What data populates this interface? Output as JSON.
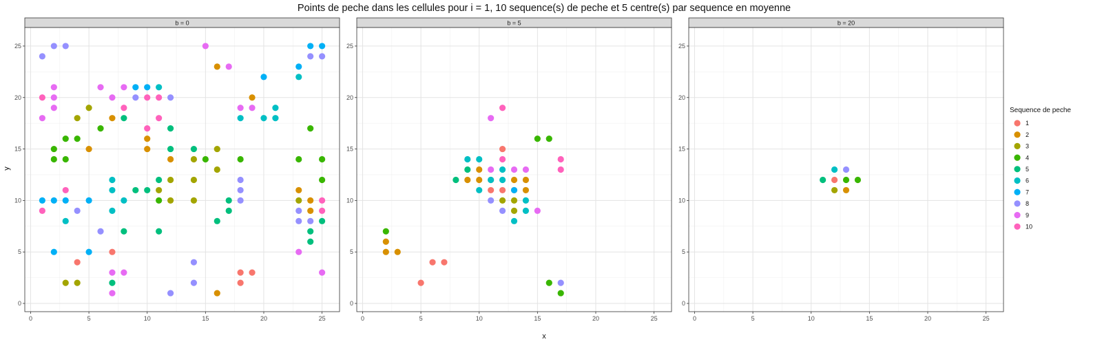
{
  "chart_data": {
    "type": "scatter",
    "title": "Points de peche dans les cellules pour i = 1, 10 sequence(s) de peche et 5 centre(s) par sequence en moyenne",
    "xlabel": "x",
    "ylabel": "y",
    "xlim": [
      -0.5,
      26.5
    ],
    "ylim": [
      -0.8,
      26.8
    ],
    "x_ticks": [
      0,
      5,
      10,
      15,
      20,
      25
    ],
    "y_ticks": [
      0,
      5,
      10,
      15,
      20,
      25
    ],
    "grid": true,
    "legend": {
      "title": "Sequence de peche",
      "placement": "right",
      "entries": [
        "1",
        "2",
        "3",
        "4",
        "5",
        "6",
        "7",
        "8",
        "9",
        "10"
      ],
      "colors": [
        "#F8766D",
        "#D89000",
        "#A3A500",
        "#39B600",
        "#00BF7D",
        "#00BFC4",
        "#00B0F6",
        "#9590FF",
        "#E76BF3",
        "#FF62BC"
      ]
    },
    "panels": [
      {
        "label": "b = 0",
        "points": [
          {
            "s": 1,
            "x": 7,
            "y": 5
          },
          {
            "s": 1,
            "x": 4,
            "y": 4
          },
          {
            "s": 1,
            "x": 18,
            "y": 3
          },
          {
            "s": 1,
            "x": 19,
            "y": 3
          },
          {
            "s": 1,
            "x": 18,
            "y": 2
          },
          {
            "s": 2,
            "x": 16,
            "y": 23
          },
          {
            "s": 2,
            "x": 19,
            "y": 20
          },
          {
            "s": 2,
            "x": 7,
            "y": 18
          },
          {
            "s": 2,
            "x": 10,
            "y": 16
          },
          {
            "s": 2,
            "x": 5,
            "y": 15
          },
          {
            "s": 2,
            "x": 10,
            "y": 15
          },
          {
            "s": 2,
            "x": 12,
            "y": 14
          },
          {
            "s": 2,
            "x": 23,
            "y": 11
          },
          {
            "s": 2,
            "x": 24,
            "y": 10
          },
          {
            "s": 2,
            "x": 24,
            "y": 9
          },
          {
            "s": 2,
            "x": 16,
            "y": 1
          },
          {
            "s": 3,
            "x": 5,
            "y": 19
          },
          {
            "s": 3,
            "x": 4,
            "y": 18
          },
          {
            "s": 3,
            "x": 16,
            "y": 15
          },
          {
            "s": 3,
            "x": 14,
            "y": 14
          },
          {
            "s": 3,
            "x": 16,
            "y": 13
          },
          {
            "s": 3,
            "x": 12,
            "y": 12
          },
          {
            "s": 3,
            "x": 14,
            "y": 12
          },
          {
            "s": 3,
            "x": 11,
            "y": 11
          },
          {
            "s": 3,
            "x": 12,
            "y": 10
          },
          {
            "s": 3,
            "x": 14,
            "y": 10
          },
          {
            "s": 3,
            "x": 23,
            "y": 10
          },
          {
            "s": 3,
            "x": 3,
            "y": 2
          },
          {
            "s": 3,
            "x": 4,
            "y": 2
          },
          {
            "s": 4,
            "x": 6,
            "y": 17
          },
          {
            "s": 4,
            "x": 24,
            "y": 17
          },
          {
            "s": 4,
            "x": 3,
            "y": 16
          },
          {
            "s": 4,
            "x": 4,
            "y": 16
          },
          {
            "s": 4,
            "x": 2,
            "y": 15
          },
          {
            "s": 4,
            "x": 2,
            "y": 14
          },
          {
            "s": 4,
            "x": 3,
            "y": 14
          },
          {
            "s": 4,
            "x": 15,
            "y": 14
          },
          {
            "s": 4,
            "x": 18,
            "y": 14
          },
          {
            "s": 4,
            "x": 23,
            "y": 14
          },
          {
            "s": 4,
            "x": 25,
            "y": 14
          },
          {
            "s": 4,
            "x": 25,
            "y": 12
          },
          {
            "s": 4,
            "x": 11,
            "y": 10
          },
          {
            "s": 5,
            "x": 12,
            "y": 17
          },
          {
            "s": 5,
            "x": 8,
            "y": 18
          },
          {
            "s": 5,
            "x": 12,
            "y": 15
          },
          {
            "s": 5,
            "x": 14,
            "y": 15
          },
          {
            "s": 5,
            "x": 11,
            "y": 12
          },
          {
            "s": 5,
            "x": 9,
            "y": 11
          },
          {
            "s": 5,
            "x": 10,
            "y": 11
          },
          {
            "s": 5,
            "x": 17,
            "y": 10
          },
          {
            "s": 5,
            "x": 17,
            "y": 9
          },
          {
            "s": 5,
            "x": 16,
            "y": 8
          },
          {
            "s": 5,
            "x": 25,
            "y": 8
          },
          {
            "s": 5,
            "x": 8,
            "y": 7
          },
          {
            "s": 5,
            "x": 11,
            "y": 7
          },
          {
            "s": 5,
            "x": 24,
            "y": 7
          },
          {
            "s": 5,
            "x": 24,
            "y": 6
          },
          {
            "s": 5,
            "x": 7,
            "y": 2
          },
          {
            "s": 6,
            "x": 11,
            "y": 21
          },
          {
            "s": 6,
            "x": 21,
            "y": 19
          },
          {
            "s": 6,
            "x": 20,
            "y": 18
          },
          {
            "s": 6,
            "x": 21,
            "y": 18
          },
          {
            "s": 6,
            "x": 18,
            "y": 18
          },
          {
            "s": 6,
            "x": 23,
            "y": 22
          },
          {
            "s": 6,
            "x": 7,
            "y": 12
          },
          {
            "s": 6,
            "x": 7,
            "y": 11
          },
          {
            "s": 6,
            "x": 8,
            "y": 10
          },
          {
            "s": 6,
            "x": 7,
            "y": 9
          },
          {
            "s": 6,
            "x": 3,
            "y": 8
          },
          {
            "s": 7,
            "x": 24,
            "y": 25
          },
          {
            "s": 7,
            "x": 25,
            "y": 25
          },
          {
            "s": 7,
            "x": 23,
            "y": 23
          },
          {
            "s": 7,
            "x": 20,
            "y": 22
          },
          {
            "s": 7,
            "x": 9,
            "y": 21
          },
          {
            "s": 7,
            "x": 10,
            "y": 21
          },
          {
            "s": 7,
            "x": 1,
            "y": 10
          },
          {
            "s": 7,
            "x": 2,
            "y": 10
          },
          {
            "s": 7,
            "x": 3,
            "y": 10
          },
          {
            "s": 7,
            "x": 5,
            "y": 10
          },
          {
            "s": 7,
            "x": 2,
            "y": 5
          },
          {
            "s": 7,
            "x": 5,
            "y": 5
          },
          {
            "s": 8,
            "x": 2,
            "y": 25
          },
          {
            "s": 8,
            "x": 3,
            "y": 25
          },
          {
            "s": 8,
            "x": 1,
            "y": 24
          },
          {
            "s": 8,
            "x": 24,
            "y": 24
          },
          {
            "s": 8,
            "x": 25,
            "y": 24
          },
          {
            "s": 8,
            "x": 9,
            "y": 20
          },
          {
            "s": 8,
            "x": 12,
            "y": 20
          },
          {
            "s": 8,
            "x": 18,
            "y": 12
          },
          {
            "s": 8,
            "x": 18,
            "y": 11
          },
          {
            "s": 8,
            "x": 18,
            "y": 10
          },
          {
            "s": 8,
            "x": 4,
            "y": 9
          },
          {
            "s": 8,
            "x": 23,
            "y": 9
          },
          {
            "s": 8,
            "x": 23,
            "y": 8
          },
          {
            "s": 8,
            "x": 24,
            "y": 8
          },
          {
            "s": 8,
            "x": 6,
            "y": 7
          },
          {
            "s": 8,
            "x": 14,
            "y": 4
          },
          {
            "s": 8,
            "x": 14,
            "y": 2
          },
          {
            "s": 8,
            "x": 12,
            "y": 1
          },
          {
            "s": 9,
            "x": 15,
            "y": 25
          },
          {
            "s": 9,
            "x": 17,
            "y": 23
          },
          {
            "s": 9,
            "x": 2,
            "y": 21
          },
          {
            "s": 9,
            "x": 6,
            "y": 21
          },
          {
            "s": 9,
            "x": 8,
            "y": 21
          },
          {
            "s": 9,
            "x": 2,
            "y": 20
          },
          {
            "s": 9,
            "x": 7,
            "y": 20
          },
          {
            "s": 9,
            "x": 2,
            "y": 19
          },
          {
            "s": 9,
            "x": 18,
            "y": 19
          },
          {
            "s": 9,
            "x": 19,
            "y": 19
          },
          {
            "s": 9,
            "x": 1,
            "y": 18
          },
          {
            "s": 9,
            "x": 23,
            "y": 5
          },
          {
            "s": 9,
            "x": 7,
            "y": 3
          },
          {
            "s": 9,
            "x": 8,
            "y": 3
          },
          {
            "s": 9,
            "x": 25,
            "y": 3
          },
          {
            "s": 9,
            "x": 7,
            "y": 1
          },
          {
            "s": 10,
            "x": 1,
            "y": 20
          },
          {
            "s": 10,
            "x": 10,
            "y": 20
          },
          {
            "s": 10,
            "x": 11,
            "y": 20
          },
          {
            "s": 10,
            "x": 8,
            "y": 19
          },
          {
            "s": 10,
            "x": 10,
            "y": 17
          },
          {
            "s": 10,
            "x": 11,
            "y": 18
          },
          {
            "s": 10,
            "x": 3,
            "y": 11
          },
          {
            "s": 10,
            "x": 25,
            "y": 10
          },
          {
            "s": 10,
            "x": 1,
            "y": 9
          },
          {
            "s": 10,
            "x": 25,
            "y": 9
          }
        ]
      },
      {
        "label": "b = 5",
        "points": [
          {
            "s": 1,
            "x": 12,
            "y": 15
          },
          {
            "s": 1,
            "x": 11,
            "y": 12
          },
          {
            "s": 1,
            "x": 11,
            "y": 11
          },
          {
            "s": 1,
            "x": 12,
            "y": 11
          },
          {
            "s": 1,
            "x": 13,
            "y": 11
          },
          {
            "s": 1,
            "x": 6,
            "y": 4
          },
          {
            "s": 1,
            "x": 7,
            "y": 4
          },
          {
            "s": 1,
            "x": 5,
            "y": 2
          },
          {
            "s": 2,
            "x": 9,
            "y": 12
          },
          {
            "s": 2,
            "x": 10,
            "y": 13
          },
          {
            "s": 2,
            "x": 10,
            "y": 12
          },
          {
            "s": 2,
            "x": 13,
            "y": 12
          },
          {
            "s": 2,
            "x": 14,
            "y": 12
          },
          {
            "s": 2,
            "x": 14,
            "y": 11
          },
          {
            "s": 2,
            "x": 2,
            "y": 6
          },
          {
            "s": 2,
            "x": 2,
            "y": 5
          },
          {
            "s": 2,
            "x": 3,
            "y": 5
          },
          {
            "s": 3,
            "x": 12,
            "y": 10
          },
          {
            "s": 3,
            "x": 13,
            "y": 10
          },
          {
            "s": 3,
            "x": 13,
            "y": 9
          },
          {
            "s": 4,
            "x": 15,
            "y": 16
          },
          {
            "s": 4,
            "x": 16,
            "y": 16
          },
          {
            "s": 4,
            "x": 2,
            "y": 7
          },
          {
            "s": 4,
            "x": 16,
            "y": 2
          },
          {
            "s": 4,
            "x": 17,
            "y": 1
          },
          {
            "s": 5,
            "x": 9,
            "y": 13
          },
          {
            "s": 5,
            "x": 8,
            "y": 12
          },
          {
            "s": 6,
            "x": 9,
            "y": 14
          },
          {
            "s": 6,
            "x": 10,
            "y": 14
          },
          {
            "s": 6,
            "x": 11,
            "y": 12
          },
          {
            "s": 6,
            "x": 12,
            "y": 12
          },
          {
            "s": 6,
            "x": 12,
            "y": 13
          },
          {
            "s": 6,
            "x": 10,
            "y": 11
          },
          {
            "s": 6,
            "x": 14,
            "y": 10
          },
          {
            "s": 6,
            "x": 14,
            "y": 9
          },
          {
            "s": 6,
            "x": 13,
            "y": 8
          },
          {
            "s": 7,
            "x": 13,
            "y": 11
          },
          {
            "s": 8,
            "x": 11,
            "y": 10
          },
          {
            "s": 8,
            "x": 12,
            "y": 9
          },
          {
            "s": 8,
            "x": 17,
            "y": 2
          },
          {
            "s": 9,
            "x": 11,
            "y": 18
          },
          {
            "s": 9,
            "x": 11,
            "y": 13
          },
          {
            "s": 9,
            "x": 13,
            "y": 13
          },
          {
            "s": 9,
            "x": 14,
            "y": 13
          },
          {
            "s": 9,
            "x": 15,
            "y": 9
          },
          {
            "s": 10,
            "x": 12,
            "y": 19
          },
          {
            "s": 10,
            "x": 12,
            "y": 14
          },
          {
            "s": 10,
            "x": 17,
            "y": 14
          },
          {
            "s": 10,
            "x": 17,
            "y": 13
          }
        ]
      },
      {
        "label": "b = 20",
        "points": [
          {
            "s": 1,
            "x": 12,
            "y": 12
          },
          {
            "s": 2,
            "x": 13,
            "y": 11
          },
          {
            "s": 3,
            "x": 12,
            "y": 11
          },
          {
            "s": 4,
            "x": 13,
            "y": 12
          },
          {
            "s": 4,
            "x": 14,
            "y": 12
          },
          {
            "s": 5,
            "x": 11,
            "y": 12
          },
          {
            "s": 6,
            "x": 12,
            "y": 13
          },
          {
            "s": 8,
            "x": 13,
            "y": 13
          }
        ]
      }
    ]
  }
}
